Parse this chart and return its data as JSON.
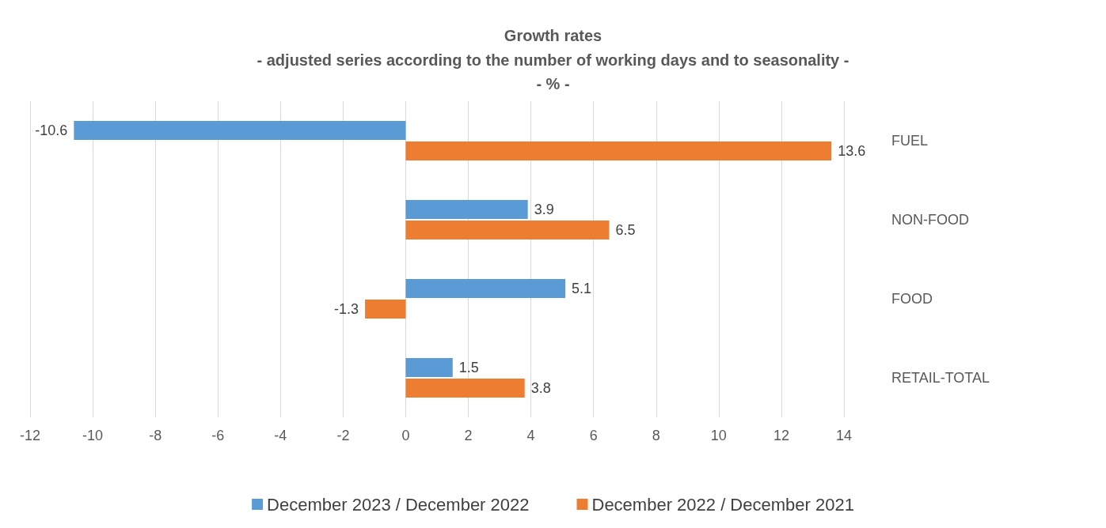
{
  "chart_data": {
    "type": "bar",
    "orientation": "horizontal",
    "title": "Growth rates",
    "subtitle": "- adjusted series according to the number of working days and to seasonality -\n- % -",
    "categories": [
      "FUEL",
      "NON-FOOD",
      "FOOD",
      "RETAIL-TOTAL"
    ],
    "series": [
      {
        "name": "December 2023 / December 2022",
        "color": "#5b9bd5",
        "values": [
          -10.6,
          3.9,
          5.1,
          1.5
        ]
      },
      {
        "name": "December 2022 / December 2021",
        "color": "#ed7d31",
        "values": [
          13.6,
          6.5,
          -1.3,
          3.8
        ]
      }
    ],
    "xlim": [
      -12,
      14
    ],
    "xticks": [
      -12,
      -10,
      -8,
      -6,
      -4,
      -2,
      0,
      2,
      4,
      6,
      8,
      10,
      12,
      14
    ],
    "grid": "x",
    "legend": "bottom",
    "data_labels": true
  }
}
